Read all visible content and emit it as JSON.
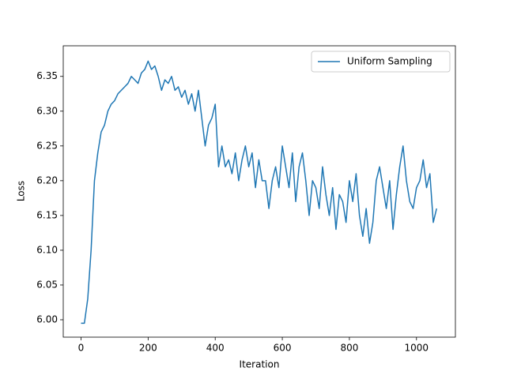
{
  "chart_data": {
    "type": "line",
    "xlabel": "Iteration",
    "ylabel": "Loss",
    "x": [
      0,
      10,
      20,
      30,
      40,
      50,
      60,
      70,
      80,
      90,
      100,
      110,
      120,
      130,
      140,
      150,
      160,
      170,
      180,
      190,
      200,
      210,
      220,
      230,
      240,
      250,
      260,
      270,
      280,
      290,
      300,
      310,
      320,
      330,
      340,
      350,
      360,
      370,
      380,
      390,
      400,
      410,
      420,
      430,
      440,
      450,
      460,
      470,
      480,
      490,
      500,
      510,
      520,
      530,
      540,
      550,
      560,
      570,
      580,
      590,
      600,
      610,
      620,
      630,
      640,
      650,
      660,
      670,
      680,
      690,
      700,
      710,
      720,
      730,
      740,
      750,
      760,
      770,
      780,
      790,
      800,
      810,
      820,
      830,
      840,
      850,
      860,
      870,
      880,
      890,
      900,
      910,
      920,
      930,
      940,
      950,
      960,
      970,
      980,
      990,
      1000,
      1010,
      1020,
      1030,
      1040,
      1050,
      1060
    ],
    "series": [
      {
        "name": "Uniform Sampling",
        "color": "#1f77b4",
        "values": [
          5.995,
          5.995,
          6.03,
          6.1,
          6.2,
          6.24,
          6.27,
          6.28,
          6.3,
          6.31,
          6.315,
          6.325,
          6.33,
          6.335,
          6.34,
          6.35,
          6.345,
          6.34,
          6.355,
          6.36,
          6.372,
          6.36,
          6.365,
          6.35,
          6.33,
          6.345,
          6.34,
          6.35,
          6.33,
          6.335,
          6.32,
          6.33,
          6.31,
          6.325,
          6.3,
          6.33,
          6.29,
          6.25,
          6.28,
          6.29,
          6.31,
          6.22,
          6.25,
          6.22,
          6.23,
          6.21,
          6.24,
          6.2,
          6.23,
          6.25,
          6.22,
          6.24,
          6.19,
          6.23,
          6.2,
          6.2,
          6.16,
          6.2,
          6.22,
          6.19,
          6.25,
          6.22,
          6.19,
          6.24,
          6.17,
          6.22,
          6.24,
          6.2,
          6.15,
          6.2,
          6.19,
          6.16,
          6.22,
          6.18,
          6.15,
          6.19,
          6.13,
          6.18,
          6.17,
          6.14,
          6.2,
          6.17,
          6.21,
          6.15,
          6.12,
          6.16,
          6.11,
          6.14,
          6.2,
          6.22,
          6.19,
          6.16,
          6.2,
          6.13,
          6.18,
          6.22,
          6.25,
          6.2,
          6.17,
          6.16,
          6.19,
          6.2,
          6.23,
          6.19,
          6.21,
          6.14,
          6.16
        ]
      }
    ],
    "xlim": [
      -53,
      1116
    ],
    "ylim": [
      5.975,
      6.394
    ],
    "xticks": [
      0,
      200,
      400,
      600,
      800,
      1000
    ],
    "yticks": [
      {
        "value": 6.0,
        "label": "6.00"
      },
      6.05,
      {
        "value": 6.1,
        "label": "6.10"
      },
      6.15,
      {
        "value": 6.2,
        "label": "6.20"
      },
      6.25,
      {
        "value": 6.3,
        "label": "6.30"
      },
      6.35
    ],
    "legend": "upper right",
    "grid": false
  }
}
